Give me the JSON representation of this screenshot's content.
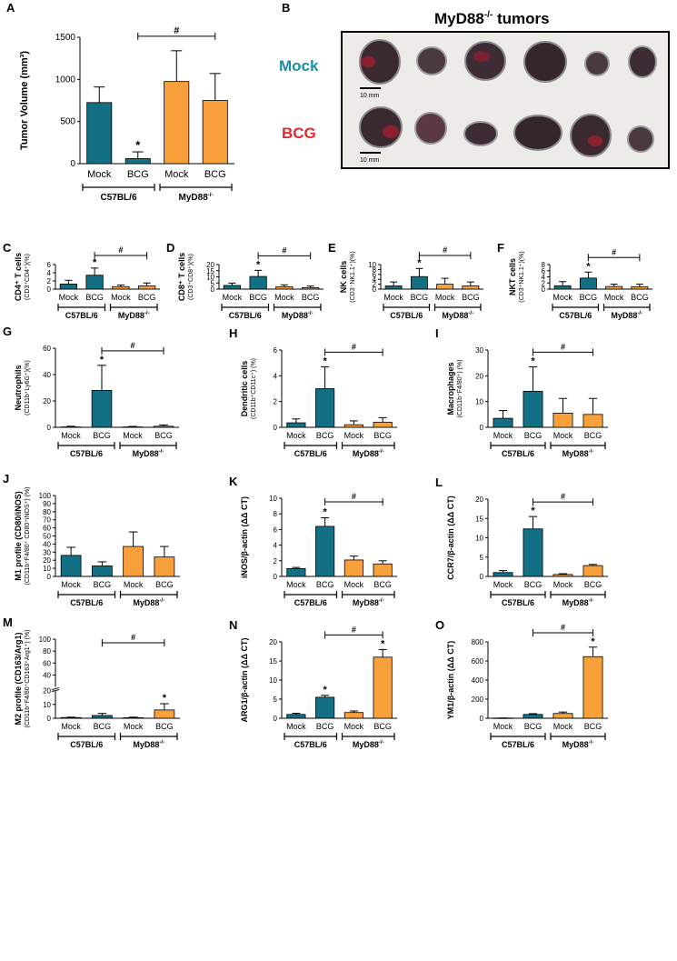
{
  "colors": {
    "c57": "#136f84",
    "myd": "#f8a13c",
    "axis": "#000000",
    "mock_label": "#1a8fa8",
    "bcg_label": "#e8262c"
  },
  "group_labels": {
    "c57": "C57BL/6",
    "myd": "MyD88",
    "myd_sup": "-/-"
  },
  "chart_data": [
    {
      "panel": "A",
      "type": "bar",
      "ylabel": "Tumor Volume (mm³)",
      "ylabel_sub": "",
      "ylim": [
        0,
        1500
      ],
      "ticks": [
        0,
        500,
        1000,
        1500
      ],
      "tick_labels": [
        "0",
        "500",
        "1000",
        "1500"
      ],
      "categories": [
        "Mock",
        "BCG",
        "Mock",
        "BCG"
      ],
      "values": [
        725,
        60,
        975,
        750
      ],
      "errors": [
        185,
        80,
        365,
        320
      ],
      "stars": [
        false,
        true,
        false,
        false
      ],
      "hash": [
        1,
        3
      ]
    },
    {
      "panel": "C",
      "type": "bar",
      "ylabel": "CD4⁺ T cells",
      "ylabel_sub": "(CD3⁺CD4⁺)(%)",
      "ylim": [
        0,
        6
      ],
      "ticks": [
        0,
        2,
        4,
        6
      ],
      "tick_labels": [
        "0",
        "2",
        "4",
        "6"
      ],
      "categories": [
        "Mock",
        "BCG",
        "Mock",
        "BCG"
      ],
      "values": [
        1.25,
        3.4,
        0.6,
        0.8
      ],
      "errors": [
        0.9,
        1.75,
        0.4,
        0.7
      ],
      "stars": [
        false,
        true,
        false,
        false
      ],
      "hash": [
        1,
        3
      ]
    },
    {
      "panel": "D",
      "type": "bar",
      "ylabel": "CD8⁺ T cells",
      "ylabel_sub": "(CD3⁺CD8⁺)(%)",
      "ylim": [
        0,
        20
      ],
      "ticks": [
        0,
        5,
        10,
        15,
        20
      ],
      "tick_labels": [
        "0",
        "5",
        "10",
        "15",
        "20"
      ],
      "categories": [
        "Mock",
        "BCG",
        "Mock",
        "BCG"
      ],
      "values": [
        3.0,
        10.3,
        1.9,
        1.2
      ],
      "errors": [
        1.9,
        5.0,
        1.6,
        1.3
      ],
      "stars": [
        false,
        true,
        false,
        false
      ],
      "hash": [
        1,
        3
      ]
    },
    {
      "panel": "E",
      "type": "bar",
      "ylabel": "NK cells",
      "ylabel_sub": "(CD3⁻NK1.1⁺)(%)",
      "ylim": [
        0,
        10
      ],
      "ticks": [
        0,
        2,
        4,
        6,
        8,
        10
      ],
      "tick_labels": [
        "0",
        "2",
        "4",
        "6",
        "8",
        "10"
      ],
      "categories": [
        "Mock",
        "BCG",
        "Mock",
        "BCG"
      ],
      "values": [
        1.3,
        5.1,
        2.0,
        1.3
      ],
      "errors": [
        1.6,
        3.3,
        2.4,
        1.6
      ],
      "stars": [
        false,
        true,
        false,
        false
      ],
      "hash": [
        1,
        3
      ]
    },
    {
      "panel": "F",
      "type": "bar",
      "ylabel": "NKT cells",
      "ylabel_sub": "(CD3⁺NK1.1⁺)(%)",
      "ylim": [
        0,
        8
      ],
      "ticks": [
        0,
        2,
        4,
        6,
        8
      ],
      "tick_labels": [
        "0",
        "2",
        "4",
        "6",
        "8"
      ],
      "categories": [
        "Mock",
        "BCG",
        "Mock",
        "BCG"
      ],
      "values": [
        1.1,
        3.6,
        0.85,
        0.8
      ],
      "errors": [
        1.35,
        1.95,
        0.75,
        0.85
      ],
      "stars": [
        false,
        true,
        false,
        false
      ],
      "hash": [
        1,
        3
      ]
    },
    {
      "panel": "G",
      "type": "bar",
      "ylabel": "Neutrophils",
      "ylabel_sub": "(CD11b⁺Ly6G⁺)(%)",
      "ylim": [
        0,
        60
      ],
      "ticks": [
        0,
        20,
        40,
        60
      ],
      "tick_labels": [
        "0",
        "20",
        "40",
        "60"
      ],
      "categories": [
        "Mock",
        "BCG",
        "Mock",
        "BCG"
      ],
      "values": [
        0.3,
        28,
        0.3,
        0.8
      ],
      "errors": [
        0.5,
        19,
        0.4,
        1.0
      ],
      "stars": [
        false,
        true,
        false,
        false
      ],
      "hash": [
        1,
        3
      ]
    },
    {
      "panel": "H",
      "type": "bar",
      "ylabel": "Dendritic cells",
      "ylabel_sub": "(CD11b⁺CD11c⁺) (%)",
      "ylim": [
        0,
        6
      ],
      "ticks": [
        0,
        2,
        4,
        6
      ],
      "tick_labels": [
        "0",
        "2",
        "4",
        "6"
      ],
      "categories": [
        "Mock",
        "BCG",
        "Mock",
        "BCG"
      ],
      "values": [
        0.35,
        3.0,
        0.2,
        0.4
      ],
      "errors": [
        0.3,
        1.7,
        0.3,
        0.35
      ],
      "stars": [
        false,
        true,
        false,
        false
      ],
      "hash": [
        1,
        3
      ]
    },
    {
      "panel": "I",
      "type": "bar",
      "ylabel": "Macrophages",
      "ylabel_sub": "(CD11b⁺F4/80⁺) (%)",
      "ylim": [
        0,
        30
      ],
      "ticks": [
        0,
        10,
        20,
        30
      ],
      "tick_labels": [
        "0",
        "10",
        "20",
        "30"
      ],
      "categories": [
        "Mock",
        "BCG",
        "Mock",
        "BCG"
      ],
      "values": [
        3.5,
        14,
        5.5,
        5.0
      ],
      "errors": [
        3.0,
        9.5,
        5.7,
        6.2
      ],
      "stars": [
        false,
        true,
        false,
        false
      ],
      "hash": [
        1,
        3
      ]
    },
    {
      "panel": "J",
      "type": "bar",
      "ylabel": "M1 profile (CD80/iNOS)",
      "ylabel_sub": "(CD11b⁺F4/80⁺ CD80⁺iNOS⁺) (%)",
      "ylim": [
        0,
        100
      ],
      "ticks": [
        0,
        10,
        20,
        30,
        40,
        50,
        60,
        70,
        80,
        90,
        100
      ],
      "tick_labels": [
        "0",
        "10",
        "20",
        "30",
        "40",
        "50",
        "60",
        "70",
        "80",
        "90",
        "100"
      ],
      "categories": [
        "Mock",
        "BCG",
        "Mock",
        "BCG"
      ],
      "values": [
        26,
        13,
        37,
        24
      ],
      "errors": [
        10,
        5,
        18,
        13
      ],
      "stars": [
        false,
        false,
        false,
        false
      ],
      "hash": null
    },
    {
      "panel": "K",
      "type": "bar",
      "ylabel": "iNOS/β-actin (ΔΔ CT)",
      "ylabel_sub": "",
      "ylim": [
        0,
        10
      ],
      "ticks": [
        0,
        2,
        4,
        6,
        8,
        10
      ],
      "tick_labels": [
        "0",
        "2",
        "4",
        "6",
        "8",
        "10"
      ],
      "categories": [
        "Mock",
        "BCG",
        "Mock",
        "BCG"
      ],
      "values": [
        1.0,
        6.4,
        2.1,
        1.6
      ],
      "errors": [
        0.15,
        1.1,
        0.5,
        0.4
      ],
      "stars": [
        false,
        true,
        false,
        false
      ],
      "hash": [
        1,
        3
      ]
    },
    {
      "panel": "L",
      "type": "bar",
      "ylabel": "CCR7/β-actin (ΔΔ CT)",
      "ylabel_sub": "",
      "ylim": [
        0,
        20
      ],
      "ticks": [
        0,
        5,
        10,
        15,
        20
      ],
      "tick_labels": [
        "0",
        "5",
        "10",
        "15",
        "20"
      ],
      "categories": [
        "Mock",
        "BCG",
        "Mock",
        "BCG"
      ],
      "values": [
        1.0,
        12.3,
        0.5,
        2.8
      ],
      "errors": [
        0.5,
        3.2,
        0.2,
        0.3
      ],
      "stars": [
        false,
        true,
        false,
        false
      ],
      "hash": [
        1,
        3
      ]
    },
    {
      "panel": "M",
      "type": "bar",
      "ylabel": "M2 profile (CD163/Arg1)",
      "ylabel_sub": "(CD11b⁺F4/80⁺CD163⁺Arg1⁺) (%)",
      "ylim": [
        0,
        100
      ],
      "ticks": [
        0,
        10,
        20,
        40,
        60,
        80,
        100
      ],
      "tick_labels": [
        "0",
        "10",
        "20",
        "40",
        "60",
        "80",
        "100"
      ],
      "axis_break": true,
      "categories": [
        "Mock",
        "BCG",
        "Mock",
        "BCG"
      ],
      "values": [
        0.5,
        2.0,
        0.4,
        6.0
      ],
      "errors": [
        0.3,
        1.5,
        0.4,
        4.5
      ],
      "stars": [
        false,
        false,
        false,
        true
      ],
      "hash": [
        1,
        3
      ]
    },
    {
      "panel": "N",
      "type": "bar",
      "ylabel": "ARG1/β-actin (ΔΔ CT)",
      "ylabel_sub": "",
      "ylim": [
        0,
        20
      ],
      "ticks": [
        0,
        5,
        10,
        15,
        20
      ],
      "tick_labels": [
        "0",
        "5",
        "10",
        "15",
        "20"
      ],
      "categories": [
        "Mock",
        "BCG",
        "Mock",
        "BCG"
      ],
      "values": [
        1.0,
        5.5,
        1.5,
        16
      ],
      "errors": [
        0.3,
        0.5,
        0.4,
        2.0
      ],
      "stars": [
        false,
        true,
        false,
        true
      ],
      "hash": [
        1,
        3
      ]
    },
    {
      "panel": "O",
      "type": "bar",
      "ylabel": "YM1/β-actin (ΔΔ CT)",
      "ylabel_sub": "",
      "ylim": [
        0,
        800
      ],
      "ticks": [
        0,
        200,
        400,
        600,
        800
      ],
      "tick_labels": [
        "0",
        "200",
        "400",
        "600",
        "800"
      ],
      "categories": [
        "Mock",
        "BCG",
        "Mock",
        "BCG"
      ],
      "values": [
        2,
        40,
        50,
        645
      ],
      "errors": [
        1,
        8,
        15,
        100
      ],
      "stars": [
        false,
        false,
        false,
        true
      ],
      "hash": [
        1,
        3
      ]
    }
  ],
  "photo": {
    "panel": "B",
    "title": "MyD88",
    "title_sup": "-/-",
    "title_suffix": " tumors",
    "row1_label": "Mock",
    "row2_label": "BCG",
    "scale_label": "10 mm"
  },
  "marks": {
    "star": "*",
    "hash": "#"
  }
}
